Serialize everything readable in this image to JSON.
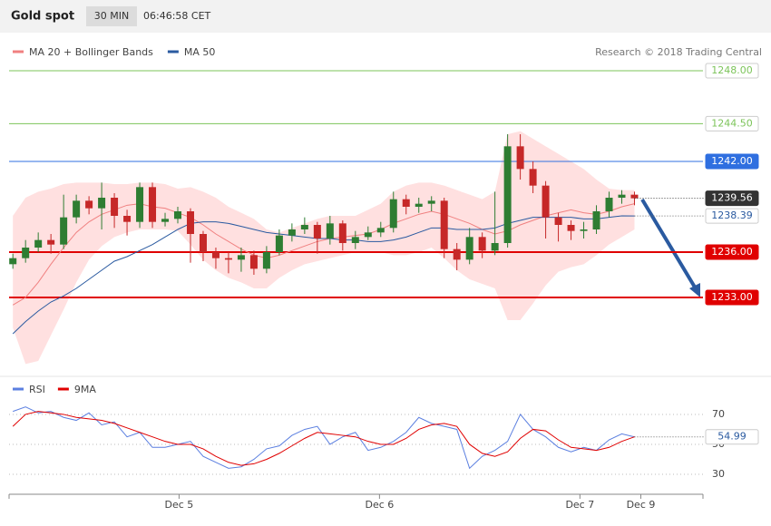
{
  "header": {
    "title": "Gold spot",
    "interval": "30 MIN",
    "time": "06:46:58 CET"
  },
  "chart_data": [
    {
      "type": "candlestick",
      "legend": [
        {
          "name": "MA 20 + Bollinger Bands",
          "color": "#f08080"
        },
        {
          "name": "MA 50",
          "color": "#2a5aa0"
        }
      ],
      "credit": "Research © 2018 Trading Central",
      "ylim": [
        1228.08,
        1250.28
      ],
      "up_color": "#2e7d32",
      "down_color": "#c62828",
      "xlim": [
        -0.3,
        54.4
      ],
      "xticks": [
        {
          "value": 13.1,
          "label": "Dec 5"
        },
        {
          "value": 28.9,
          "label": "Dec 6"
        },
        {
          "value": 44.7,
          "label": "Dec 7"
        },
        {
          "value": 49.5,
          "label": "Dec 9"
        }
      ],
      "levels": [
        {
          "value": 1248,
          "label": "1248.00",
          "color": "#7cc45a",
          "fill": false,
          "line": "solid"
        },
        {
          "value": 1244.5,
          "label": "1244.50",
          "color": "#7cc45a",
          "fill": false,
          "line": "solid"
        },
        {
          "value": 1242,
          "label": "1242.00",
          "color": "#2f6fe0",
          "fill": true,
          "line": "solid"
        },
        {
          "value": 1236,
          "label": "1236.00",
          "color": "#e00000",
          "fill": true,
          "line": "solid"
        },
        {
          "value": 1233,
          "label": "1233.00",
          "color": "#e00000",
          "fill": true,
          "line": "solid"
        }
      ],
      "candles": [
        [
          1235.2,
          1235.9,
          1234.9,
          1235.6
        ],
        [
          1235.6,
          1236.8,
          1235.3,
          1236.3
        ],
        [
          1236.3,
          1237.3,
          1236.0,
          1236.8
        ],
        [
          1236.8,
          1237.2,
          1235.9,
          1236.5
        ],
        [
          1236.5,
          1239.8,
          1236.2,
          1238.3
        ],
        [
          1238.3,
          1239.8,
          1237.9,
          1239.4
        ],
        [
          1239.4,
          1239.7,
          1238.5,
          1238.9
        ],
        [
          1238.9,
          1240.6,
          1237.5,
          1239.6
        ],
        [
          1239.6,
          1239.9,
          1237.6,
          1238.4
        ],
        [
          1238.4,
          1238.8,
          1237.1,
          1238.0
        ],
        [
          1238.0,
          1240.6,
          1237.6,
          1240.3
        ],
        [
          1240.3,
          1240.6,
          1237.6,
          1238.0
        ],
        [
          1238.0,
          1238.6,
          1237.7,
          1238.2
        ],
        [
          1238.2,
          1239.0,
          1237.9,
          1238.7
        ],
        [
          1238.7,
          1238.9,
          1235.3,
          1237.2
        ],
        [
          1237.2,
          1237.4,
          1235.4,
          1236.0
        ],
        [
          1236.0,
          1236.3,
          1234.9,
          1235.6
        ],
        [
          1235.6,
          1236.0,
          1234.6,
          1235.5
        ],
        [
          1235.5,
          1236.3,
          1234.7,
          1235.8
        ],
        [
          1235.8,
          1236.1,
          1234.5,
          1234.9
        ],
        [
          1234.9,
          1236.4,
          1234.6,
          1236.0
        ],
        [
          1236.0,
          1237.5,
          1235.8,
          1237.1
        ],
        [
          1237.1,
          1237.9,
          1236.7,
          1237.5
        ],
        [
          1237.5,
          1238.3,
          1237.2,
          1237.8
        ],
        [
          1237.8,
          1238.0,
          1235.9,
          1236.9
        ],
        [
          1236.9,
          1238.4,
          1236.5,
          1237.9
        ],
        [
          1237.9,
          1238.1,
          1236.1,
          1236.6
        ],
        [
          1236.6,
          1237.4,
          1236.2,
          1237.0
        ],
        [
          1237.0,
          1237.7,
          1236.8,
          1237.3
        ],
        [
          1237.3,
          1238.0,
          1237.0,
          1237.6
        ],
        [
          1237.6,
          1240.0,
          1237.3,
          1239.5
        ],
        [
          1239.5,
          1239.8,
          1238.5,
          1239.0
        ],
        [
          1239.0,
          1239.6,
          1238.6,
          1239.2
        ],
        [
          1239.2,
          1239.7,
          1238.7,
          1239.4
        ],
        [
          1239.4,
          1239.6,
          1235.6,
          1236.2
        ],
        [
          1236.2,
          1236.6,
          1234.8,
          1235.5
        ],
        [
          1235.5,
          1237.6,
          1235.2,
          1237.0
        ],
        [
          1237.0,
          1237.3,
          1235.6,
          1236.1
        ],
        [
          1236.1,
          1240.0,
          1235.8,
          1236.6
        ],
        [
          1236.6,
          1243.8,
          1236.3,
          1243.0
        ],
        [
          1243.0,
          1243.8,
          1240.8,
          1241.5
        ],
        [
          1241.5,
          1242.0,
          1239.9,
          1240.4
        ],
        [
          1240.4,
          1240.7,
          1236.9,
          1238.3
        ],
        [
          1238.3,
          1238.6,
          1236.7,
          1237.8
        ],
        [
          1237.8,
          1238.1,
          1236.8,
          1237.4
        ],
        [
          1237.4,
          1238.0,
          1236.9,
          1237.5
        ],
        [
          1237.5,
          1239.1,
          1237.2,
          1238.7
        ],
        [
          1238.7,
          1240.0,
          1238.3,
          1239.6
        ],
        [
          1239.6,
          1240.1,
          1239.2,
          1239.8
        ],
        [
          1239.8,
          1240.0,
          1239.1,
          1239.56
        ]
      ],
      "series": [
        {
          "name": "MA 20",
          "color": "#f08080",
          "values": [
            1232.5,
            1233.0,
            1234.0,
            1235.2,
            1236.3,
            1237.3,
            1238.0,
            1238.5,
            1238.8,
            1239.1,
            1239.2,
            1239.0,
            1238.9,
            1238.6,
            1238.3,
            1237.8,
            1237.2,
            1236.7,
            1236.2,
            1235.8,
            1235.6,
            1235.8,
            1236.1,
            1236.4,
            1236.7,
            1236.9,
            1237.0,
            1237.1,
            1237.2,
            1237.5,
            1237.9,
            1238.2,
            1238.5,
            1238.7,
            1238.5,
            1238.2,
            1237.9,
            1237.5,
            1237.2,
            1237.4,
            1237.8,
            1238.1,
            1238.4,
            1238.6,
            1238.8,
            1238.6,
            1238.5,
            1238.7,
            1239.0,
            1239.2
          ]
        },
        {
          "name": "Upper band",
          "color": "#ffe0e0",
          "values": [
            1238.4,
            1239.6,
            1240.0,
            1240.2,
            1240.5,
            1240.6,
            1240.6,
            1240.6,
            1240.5,
            1240.5,
            1240.6,
            1240.6,
            1240.5,
            1240.2,
            1240.3,
            1240.0,
            1239.6,
            1239.0,
            1238.6,
            1238.2,
            1237.5,
            1237.3,
            1237.6,
            1237.9,
            1238.2,
            1238.4,
            1238.4,
            1238.4,
            1238.8,
            1239.2,
            1240.0,
            1240.4,
            1240.6,
            1240.6,
            1240.4,
            1240.1,
            1239.8,
            1239.5,
            1240.0,
            1243.8,
            1244.0,
            1243.5,
            1243.0,
            1242.5,
            1242.0,
            1241.5,
            1240.8,
            1240.2,
            1240.1,
            1240.1
          ]
        },
        {
          "name": "Lower band",
          "color": "#ffe0e0",
          "values": [
            1231.0,
            1228.6,
            1228.8,
            1230.5,
            1232.2,
            1234.0,
            1235.5,
            1236.4,
            1237.0,
            1237.3,
            1237.5,
            1237.5,
            1237.5,
            1237.4,
            1236.5,
            1235.5,
            1234.8,
            1234.3,
            1234.0,
            1233.6,
            1233.6,
            1234.3,
            1234.8,
            1235.2,
            1235.4,
            1235.6,
            1235.8,
            1236.0,
            1236.0,
            1236.0,
            1235.8,
            1235.8,
            1236.0,
            1236.3,
            1235.6,
            1234.8,
            1234.2,
            1233.9,
            1233.6,
            1231.5,
            1231.5,
            1232.6,
            1233.8,
            1234.7,
            1235.0,
            1235.2,
            1235.8,
            1236.5,
            1237.0,
            1237.5
          ]
        },
        {
          "name": "MA 50",
          "color": "#2a5aa0",
          "values": [
            1230.6,
            1231.4,
            1232.1,
            1232.7,
            1233.1,
            1233.6,
            1234.2,
            1234.8,
            1235.4,
            1235.7,
            1236.1,
            1236.5,
            1237.0,
            1237.5,
            1237.9,
            1238.0,
            1238.0,
            1237.9,
            1237.7,
            1237.5,
            1237.3,
            1237.2,
            1237.1,
            1237.0,
            1236.9,
            1236.9,
            1236.8,
            1236.8,
            1236.7,
            1236.7,
            1236.8,
            1237.0,
            1237.3,
            1237.6,
            1237.6,
            1237.5,
            1237.5,
            1237.5,
            1237.6,
            1237.9,
            1238.1,
            1238.3,
            1238.3,
            1238.3,
            1238.3,
            1238.2,
            1238.2,
            1238.3,
            1238.4,
            1238.39
          ]
        }
      ]
    },
    {
      "type": "line",
      "ylim": [
        19.7,
        95.4
      ],
      "yticks": [
        30,
        50,
        70
      ],
      "series": [
        {
          "name": "RSI",
          "color": "#5b7fe0",
          "values": [
            72,
            75,
            71,
            72,
            68,
            66,
            71,
            63,
            65,
            55,
            58,
            48,
            48,
            50,
            52,
            42,
            38,
            34,
            35,
            40,
            47,
            49,
            56,
            60,
            62,
            50,
            55,
            58,
            46,
            48,
            52,
            58,
            68,
            64,
            62,
            60,
            34,
            42,
            46,
            52,
            70,
            60,
            55,
            48,
            45,
            48,
            46,
            53,
            57,
            54.99
          ]
        },
        {
          "name": "9MA",
          "color": "#e00000",
          "values": [
            62,
            70,
            72,
            71,
            70,
            68,
            67,
            66,
            64,
            61,
            58,
            55,
            52,
            50,
            50,
            47,
            42,
            38,
            36,
            37,
            40,
            44,
            49,
            54,
            58,
            57,
            56,
            55,
            52,
            50,
            50,
            54,
            60,
            63,
            64,
            62,
            50,
            44,
            42,
            45,
            54,
            60,
            59,
            53,
            48,
            47,
            46,
            48,
            52,
            55
          ]
        }
      ]
    }
  ]
}
